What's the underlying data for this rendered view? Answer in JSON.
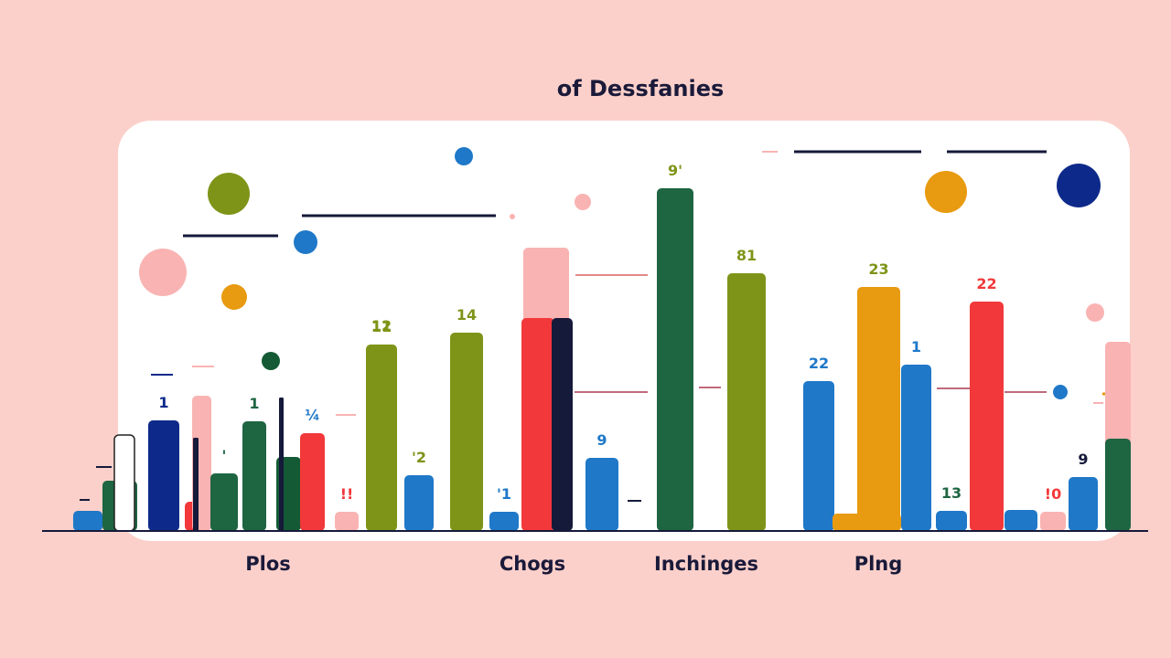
{
  "colors": {
    "background": "#fcd0ca",
    "panel": "#ffffff",
    "navy": "#0d2a8a",
    "dark_green": "#1e6542",
    "forest": "#145a35",
    "olive": "#7e9418",
    "red": "#f2383a",
    "blue": "#1f78c8",
    "orange": "#e89a10",
    "pink": "#f9b3b3",
    "ink": "#15193a"
  },
  "chart_data": {
    "type": "bar",
    "title": "of Dessfanies",
    "categories": [
      "Plos",
      "Chogs",
      "Inchinges",
      "Plng"
    ],
    "bars": [
      {
        "x": 80,
        "w": 32,
        "value": 22,
        "color": "#1f78c8"
      },
      {
        "x": 112,
        "w": 38,
        "value": 55,
        "color": "#1e6542"
      },
      {
        "x": 125,
        "w": 22,
        "value": 105,
        "color": "#ffffff",
        "stroke": "#222222",
        "label": "",
        "label_color": "#1e6542"
      },
      {
        "x": 162,
        "w": 34,
        "value": 121,
        "color": "#0d2a8a",
        "label": "1",
        "label_color": "#0d2a8a"
      },
      {
        "x": 202,
        "w": 28,
        "value": 32,
        "color": "#f2383a"
      },
      {
        "x": 210,
        "w": 21,
        "value": 148,
        "color": "#f9b3b3"
      },
      {
        "x": 211,
        "w": 6,
        "value": 102,
        "color": "#15193a"
      },
      {
        "x": 230,
        "w": 30,
        "value": 63,
        "color": "#1e6542",
        "label": "'",
        "label_color": "#1e6542"
      },
      {
        "x": 265,
        "w": 26,
        "value": 120,
        "color": "#1e6542",
        "label": "1",
        "label_color": "#1e6542"
      },
      {
        "x": 302,
        "w": 27,
        "value": 81,
        "color": "#145a35"
      },
      {
        "x": 305,
        "w": 5,
        "value": 146,
        "color": "#15193a"
      },
      {
        "x": 328,
        "w": 27,
        "value": 107,
        "color": "#f2383a",
        "label": "¼",
        "label_color": "#1f78c8"
      },
      {
        "x": 366,
        "w": 26,
        "value": 21,
        "color": "#f9b3b3",
        "label": "!!",
        "label_color": "#f2383a"
      },
      {
        "x": 400,
        "w": 34,
        "value": 204,
        "color": "#7e9418",
        "label": "11",
        "label_color": "#7e9418"
      },
      {
        "x": 442,
        "w": 32,
        "value": 61,
        "color": "#1f78c8",
        "label": "'2",
        "label_color": "#7e9418"
      },
      {
        "x": 492,
        "w": 36,
        "value": 217,
        "color": "#7e9418",
        "label": "14",
        "label_color": "#7e9418"
      },
      {
        "x": 535,
        "w": 32,
        "value": 21,
        "color": "#1f78c8",
        "label": "'1",
        "label_color": "#1f78c8"
      },
      {
        "x": 572,
        "w": 50,
        "value": 310,
        "color": "#f9b3b3"
      },
      {
        "x": 570,
        "w": 36,
        "value": 233,
        "color": "#f2383a"
      },
      {
        "x": 603,
        "w": 23,
        "value": 233,
        "color": "#15193a"
      },
      {
        "x": 640,
        "w": 36,
        "value": 80,
        "color": "#1f78c8",
        "label": "9",
        "label_color": "#1f78c8"
      },
      {
        "x": 718,
        "w": 40,
        "value": 375,
        "color": "#1e6542",
        "label": "9'",
        "label_color": "#7e9418"
      },
      {
        "x": 795,
        "w": 42,
        "value": 282,
        "color": "#7e9418",
        "label": "81",
        "label_color": "#7e9418"
      },
      {
        "x": 878,
        "w": 34,
        "value": 164,
        "color": "#1f78c8",
        "label": "22",
        "label_color": "#1f78c8"
      },
      {
        "x": 910,
        "w": 75,
        "value": 19,
        "color": "#e89a10",
        "label": "!!",
        "label_color": "#e89a10"
      },
      {
        "x": 937,
        "w": 47,
        "value": 267,
        "color": "#e89a10",
        "label": "23",
        "label_color": "#7e9418"
      },
      {
        "x": 985,
        "w": 33,
        "value": 182,
        "color": "#1f78c8",
        "label": "1",
        "label_color": "#1f78c8"
      },
      {
        "x": 1023,
        "w": 34,
        "value": 22,
        "color": "#1f78c8",
        "label": "13",
        "label_color": "#1e6542"
      },
      {
        "x": 1060,
        "w": 37,
        "value": 251,
        "color": "#f2383a",
        "label": "22",
        "label_color": "#f2383a"
      },
      {
        "x": 1098,
        "w": 36,
        "value": 23,
        "color": "#1f78c8"
      },
      {
        "x": 1137,
        "w": 28,
        "value": 21,
        "color": "#f9b3b3",
        "label": "!0",
        "label_color": "#f2383a"
      },
      {
        "x": 1168,
        "w": 32,
        "value": 59,
        "color": "#1f78c8",
        "label": "9",
        "label_color": "#15193a"
      },
      {
        "x": 1208,
        "w": 28,
        "value": 207,
        "color": "#f9b3b3"
      },
      {
        "x": 1208,
        "w": 28,
        "value": 101,
        "color": "#1e6542"
      }
    ]
  }
}
